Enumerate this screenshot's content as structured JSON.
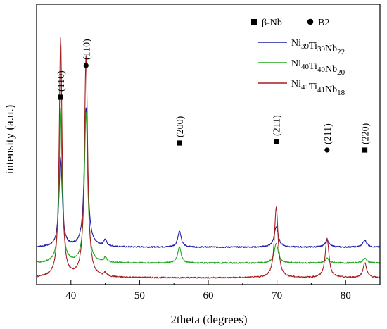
{
  "chart_data": {
    "type": "line",
    "title": "",
    "xlabel": "2theta (degrees)",
    "ylabel": "intensity (a.u.)",
    "xlim": [
      35,
      85
    ],
    "xticks": [
      40,
      50,
      60,
      70,
      80
    ],
    "grid": false,
    "legend_placement": "top-right",
    "phase_legend": [
      {
        "symbol": "square",
        "label": "β-Nb"
      },
      {
        "symbol": "circle",
        "label": "B2"
      }
    ],
    "peak_labels": [
      {
        "x": 38.5,
        "label": "(110)",
        "symbol": "square"
      },
      {
        "x": 42.2,
        "label": "(110)",
        "symbol": "circle"
      },
      {
        "x": 55.8,
        "label": "(200)",
        "symbol": "square"
      },
      {
        "x": 69.9,
        "label": "(211)",
        "symbol": "square"
      },
      {
        "x": 77.3,
        "label": "(211)",
        "symbol": "circle"
      },
      {
        "x": 82.8,
        "label": "(220)",
        "symbol": "square"
      }
    ],
    "series": [
      {
        "name": "Ni39Ti39Nb22",
        "name_parts": [
          [
            "Ni",
            "39"
          ],
          [
            "Ti",
            "39"
          ],
          [
            "Nb",
            "22"
          ]
        ],
        "color": "#1f1fa8",
        "baseline": 0.21,
        "peaks": [
          {
            "x": 38.5,
            "height": 0.78,
            "width": 0.28
          },
          {
            "x": 42.2,
            "height": 1.22,
            "width": 0.3
          },
          {
            "x": 45.0,
            "height": 0.06,
            "width": 0.25
          },
          {
            "x": 55.8,
            "height": 0.14,
            "width": 0.3
          },
          {
            "x": 69.9,
            "height": 0.18,
            "width": 0.35
          },
          {
            "x": 77.3,
            "height": 0.06,
            "width": 0.35
          },
          {
            "x": 82.8,
            "height": 0.06,
            "width": 0.35
          }
        ]
      },
      {
        "name": "Ni40Ti40Nb20",
        "name_parts": [
          [
            "Ni",
            "40"
          ],
          [
            "Ti",
            "40"
          ],
          [
            "Nb",
            "20"
          ]
        ],
        "color": "#1fa61f",
        "baseline": 0.07,
        "peaks": [
          {
            "x": 38.5,
            "height": 1.35,
            "width": 0.25
          },
          {
            "x": 42.2,
            "height": 1.32,
            "width": 0.28
          },
          {
            "x": 45.0,
            "height": 0.04,
            "width": 0.25
          },
          {
            "x": 55.8,
            "height": 0.14,
            "width": 0.3
          },
          {
            "x": 69.9,
            "height": 0.17,
            "width": 0.35
          },
          {
            "x": 77.3,
            "height": 0.04,
            "width": 0.35
          },
          {
            "x": 82.8,
            "height": 0.04,
            "width": 0.35
          }
        ]
      },
      {
        "name": "Ni41Ti41Nb18",
        "name_parts": [
          [
            "Ni",
            "41"
          ],
          [
            "Ti",
            "41"
          ],
          [
            "Nb",
            "18"
          ]
        ],
        "color": "#a51f1f",
        "baseline": -0.06,
        "peaks": [
          {
            "x": 38.5,
            "height": 2.1,
            "width": 0.25
          },
          {
            "x": 42.2,
            "height": 1.95,
            "width": 0.28
          },
          {
            "x": 45.0,
            "height": 0.03,
            "width": 0.25
          },
          {
            "x": 69.9,
            "height": 0.62,
            "width": 0.32
          },
          {
            "x": 77.3,
            "height": 0.35,
            "width": 0.32
          },
          {
            "x": 82.8,
            "height": 0.13,
            "width": 0.32
          }
        ]
      }
    ]
  }
}
